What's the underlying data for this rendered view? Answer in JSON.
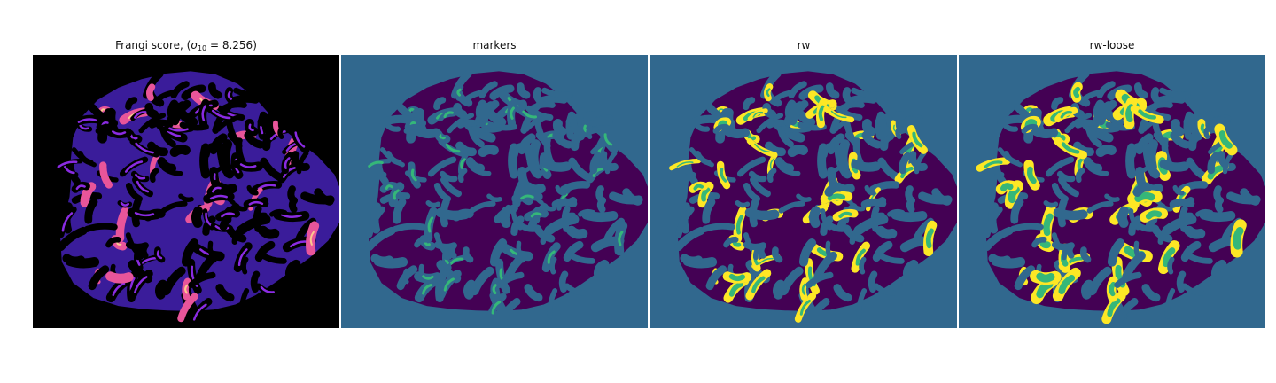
{
  "panels": [
    {
      "id": "frangi",
      "title_prefix": "Frangi score, (",
      "title_sigma_sub": "10",
      "title_suffix": " = 8.256)"
    },
    {
      "id": "markers",
      "title": "markers"
    },
    {
      "id": "rw",
      "title": "rw"
    },
    {
      "id": "rw_loose",
      "title": "rw-loose"
    }
  ],
  "colors": {
    "black_bg": "#000000",
    "magma_dark": "#3a1c9a",
    "magma_mid": "#8a2be2",
    "magma_hot": "#e8559a",
    "magma_peak": "#fcc98f",
    "viridis_bg": "#31688e",
    "viridis_fg": "#440154",
    "viridis_mark": "#35b779",
    "viridis_yellow": "#fde725"
  }
}
